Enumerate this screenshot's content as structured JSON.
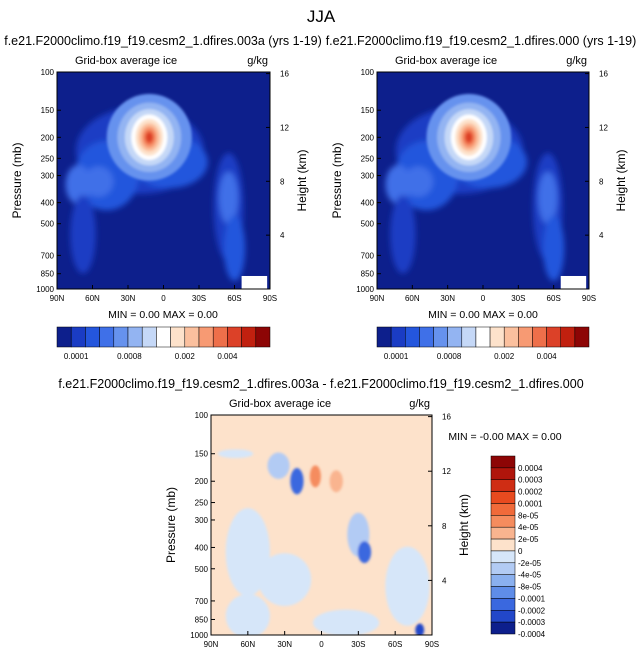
{
  "page_title": "JJA",
  "chart_data": [
    {
      "type": "heatmap",
      "title": "f.e21.F2000climo.f19_f19.cesm2_1.dfires.003a (yrs 1-19)",
      "subtitle_left": "Grid-box average ice",
      "subtitle_right": "g/kg",
      "ylabel": "Pressure (mb)",
      "ylabel_right": "Height (km)",
      "x_ticks": [
        "90N",
        "60N",
        "30N",
        "0",
        "30S",
        "60S",
        "90S"
      ],
      "y_ticks": [
        "100",
        "150",
        "200",
        "250",
        "300",
        "400",
        "500",
        "700",
        "850",
        "1000"
      ],
      "y_ticks_right": [
        "16",
        "12",
        "8",
        "4"
      ],
      "min_max": "MIN =  0.00  MAX =  0.00",
      "colorbar_labels": [
        "0.0001",
        "0.0008",
        "0.002",
        "0.004"
      ],
      "peak": {
        "lat": 12,
        "pressure_mb": 200
      }
    },
    {
      "type": "heatmap",
      "title": "f.e21.F2000climo.f19_f19.cesm2_1.dfires.000 (yrs 1-19)",
      "subtitle_left": "Grid-box average ice",
      "subtitle_right": "g/kg",
      "ylabel": "Pressure (mb)",
      "ylabel_right": "Height (km)",
      "x_ticks": [
        "90N",
        "60N",
        "30N",
        "0",
        "30S",
        "60S",
        "90S"
      ],
      "y_ticks": [
        "100",
        "150",
        "200",
        "250",
        "300",
        "400",
        "500",
        "700",
        "850",
        "1000"
      ],
      "y_ticks_right": [
        "16",
        "12",
        "8",
        "4"
      ],
      "min_max": "MIN =  0.00  MAX =  0.00",
      "colorbar_labels": [
        "0.0001",
        "0.0008",
        "0.002",
        "0.004"
      ],
      "peak": {
        "lat": 12,
        "pressure_mb": 200
      }
    },
    {
      "type": "heatmap",
      "title": "f.e21.F2000climo.f19_f19.cesm2_1.dfires.003a - f.e21.F2000climo.f19_f19.cesm2_1.dfires.000",
      "subtitle_left": "Grid-box average ice",
      "subtitle_right": "g/kg",
      "ylabel": "Pressure (mb)",
      "ylabel_right": "Height (km)",
      "x_ticks": [
        "90N",
        "60N",
        "30N",
        "0",
        "30S",
        "60S",
        "90S"
      ],
      "y_ticks": [
        "100",
        "150",
        "200",
        "250",
        "300",
        "400",
        "500",
        "700",
        "850",
        "1000"
      ],
      "y_ticks_right": [
        "16",
        "12",
        "8",
        "4"
      ],
      "min_max": "MIN = -0.00  MAX =  0.00",
      "colorbar_labels": [
        "0.0004",
        "0.0003",
        "0.0002",
        "0.0001",
        "8e-05",
        "4e-05",
        "2e-05",
        "0",
        "-2e-05",
        "-4e-05",
        "-8e-05",
        "-0.0001",
        "-0.0002",
        "-0.0003",
        "-0.0004"
      ]
    }
  ],
  "colors": {
    "abs_scale": [
      "#0d1f8c",
      "#1a3cc4",
      "#2456dd",
      "#3f70e8",
      "#6692ee",
      "#93b4f2",
      "#c5d8f7",
      "#ffffff",
      "#fde2cb",
      "#fbc09e",
      "#f79a73",
      "#ee6f4a",
      "#dc4128",
      "#c1200f",
      "#8d0505"
    ],
    "diff_scale": [
      "#8d0505",
      "#b0150b",
      "#cf2d14",
      "#e84a1f",
      "#f06a3a",
      "#f58c5e",
      "#f9b48f",
      "#fde2cb",
      "#d6e6f9",
      "#b2cbf4",
      "#8ab0ef",
      "#5f8de8",
      "#3a68df",
      "#2247c9",
      "#0d1f8c"
    ]
  }
}
